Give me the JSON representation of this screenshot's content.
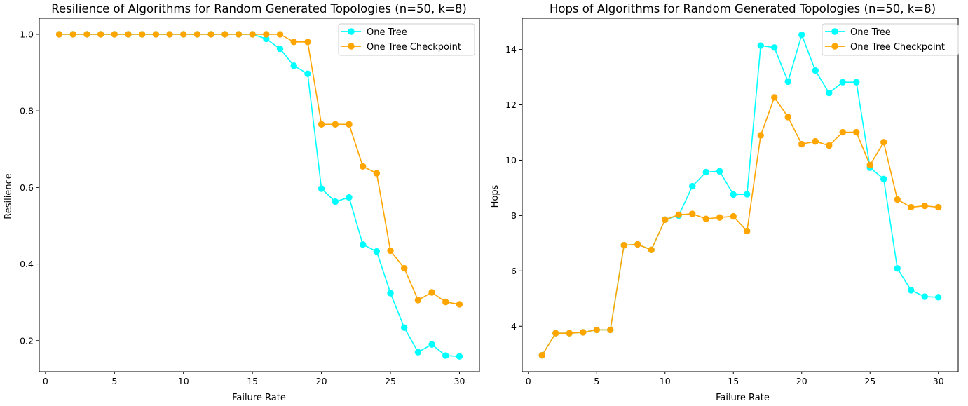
{
  "chart_data": [
    {
      "type": "line",
      "title": "Resilience of Algorithms for Random Generated Topologies (n=50, k=8)",
      "xlabel": "Failure Rate",
      "ylabel": "Resilience",
      "xlim": [
        -0.45,
        31.45
      ],
      "ylim": [
        0.119,
        1.042
      ],
      "xticks": [
        0,
        5,
        10,
        15,
        20,
        25,
        30
      ],
      "yticks": [
        0.2,
        0.4,
        0.6,
        0.8,
        1.0
      ],
      "ytick_labels": [
        "0.2",
        "0.4",
        "0.6",
        "0.8",
        "1.0"
      ],
      "grid": false,
      "legend": "top-right",
      "x": [
        1,
        2,
        3,
        4,
        5,
        6,
        7,
        8,
        9,
        10,
        11,
        12,
        13,
        14,
        15,
        16,
        17,
        18,
        19,
        20,
        21,
        22,
        23,
        24,
        25,
        26,
        27,
        28,
        29,
        30
      ],
      "series": [
        {
          "name": "One Tree",
          "color": "#00ffff",
          "values": [
            1.0,
            1.0,
            1.0,
            1.0,
            1.0,
            1.0,
            1.0,
            1.0,
            1.0,
            1.0,
            1.0,
            1.0,
            1.0,
            1.0,
            1.0,
            0.988,
            0.962,
            0.918,
            0.897,
            0.597,
            0.563,
            0.574,
            0.451,
            0.433,
            0.324,
            0.234,
            0.17,
            0.19,
            0.161,
            0.159
          ]
        },
        {
          "name": "One Tree Checkpoint",
          "color": "#ffa500",
          "values": [
            1.0,
            1.0,
            1.0,
            1.0,
            1.0,
            1.0,
            1.0,
            1.0,
            1.0,
            1.0,
            1.0,
            1.0,
            1.0,
            1.0,
            1.0,
            1.0,
            1.0,
            0.98,
            0.98,
            0.765,
            0.765,
            0.765,
            0.655,
            0.637,
            0.435,
            0.389,
            0.306,
            0.326,
            0.301,
            0.295
          ]
        }
      ]
    },
    {
      "type": "line",
      "title": "Hops of Algorithms for Random Generated Topologies (n=50, k=8)",
      "xlabel": "Failure Rate",
      "ylabel": "Hops",
      "xlim": [
        -0.45,
        31.45
      ],
      "ylim": [
        2.36,
        15.13
      ],
      "xticks": [
        0,
        5,
        10,
        15,
        20,
        25,
        30
      ],
      "yticks": [
        4,
        6,
        8,
        10,
        12,
        14
      ],
      "ytick_labels": [
        "4",
        "6",
        "8",
        "10",
        "12",
        "14"
      ],
      "grid": false,
      "legend": "top-right",
      "x": [
        1,
        2,
        3,
        4,
        5,
        6,
        7,
        8,
        9,
        10,
        11,
        12,
        13,
        14,
        15,
        16,
        17,
        18,
        19,
        20,
        21,
        22,
        23,
        24,
        25,
        26,
        27,
        28,
        29,
        30
      ],
      "series": [
        {
          "name": "One Tree",
          "color": "#00ffff",
          "values": [
            2.95,
            3.75,
            3.75,
            3.78,
            3.87,
            3.87,
            6.93,
            6.96,
            6.76,
            7.85,
            8.0,
            9.06,
            9.57,
            9.6,
            8.76,
            8.77,
            14.14,
            14.07,
            12.84,
            14.53,
            13.24,
            12.43,
            12.82,
            12.82,
            9.73,
            9.32,
            6.09,
            5.3,
            5.07,
            5.05
          ]
        },
        {
          "name": "One Tree Checkpoint",
          "color": "#ffa500",
          "values": [
            2.95,
            3.75,
            3.75,
            3.78,
            3.87,
            3.87,
            6.93,
            6.96,
            6.76,
            7.85,
            8.03,
            8.06,
            7.88,
            7.93,
            7.97,
            7.44,
            10.9,
            12.27,
            11.56,
            10.58,
            10.68,
            10.53,
            11.01,
            11.01,
            9.82,
            10.65,
            8.58,
            8.3,
            8.35,
            8.3
          ]
        }
      ]
    }
  ]
}
